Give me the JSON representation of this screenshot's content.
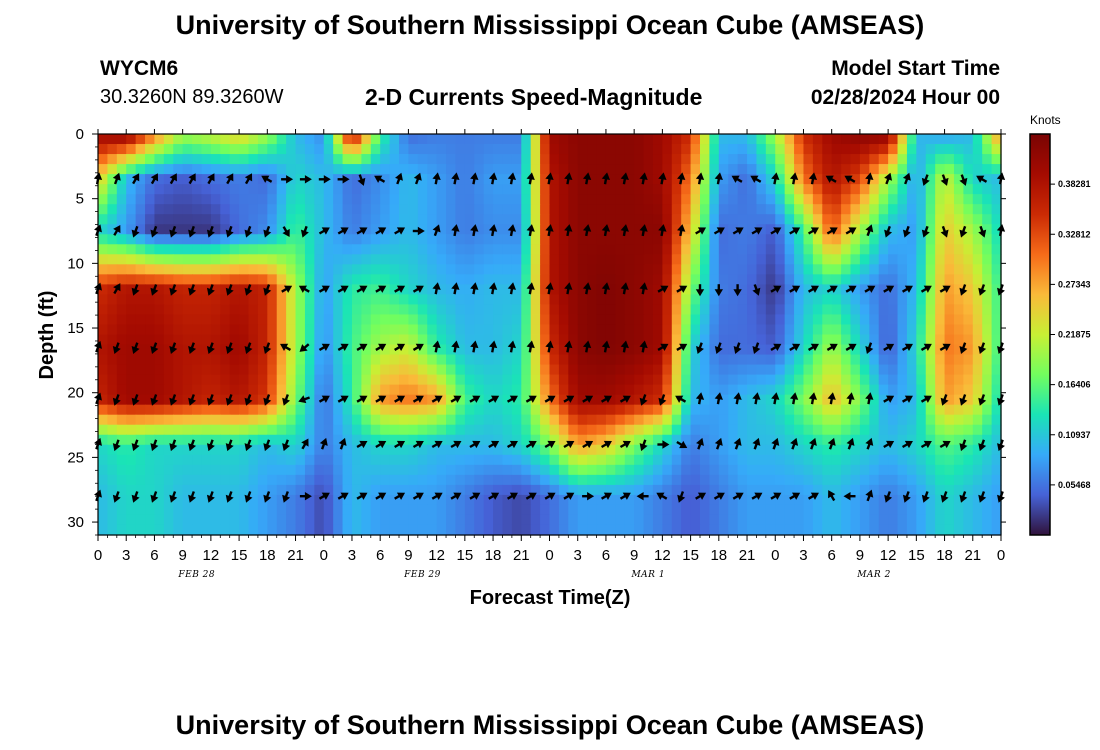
{
  "header": {
    "title": "University of Southern Mississippi Ocean Cube (AMSEAS)",
    "station_id": "WYCM6",
    "coordinates": "30.3260N  89.3260W",
    "subtitle": "2-D Currents Speed-Magnitude",
    "model_start_label": "Model Start Time",
    "model_start_value": "02/28/2024 Hour 00"
  },
  "footer": {
    "title_repeat": "University of Southern Mississippi Ocean Cube (AMSEAS)"
  },
  "chart_data": {
    "type": "heatmap",
    "title": "2-D Currents Speed-Magnitude",
    "xlabel": "Forecast Time(Z)",
    "ylabel": "Depth (ft)",
    "colorbar_label": "Knots",
    "colorbar_ticks": [
      "0.05468",
      "0.10937",
      "0.16406",
      "0.21875",
      "0.27343",
      "0.32812",
      "0.38281"
    ],
    "colorbar_range": [
      0.0,
      0.4375
    ],
    "x_ticks": [
      "0",
      "3",
      "6",
      "9",
      "12",
      "15",
      "18",
      "21",
      "0",
      "3",
      "6",
      "9",
      "12",
      "15",
      "18",
      "21",
      "0",
      "3",
      "6",
      "9",
      "12",
      "15",
      "18",
      "21",
      "0",
      "3",
      "6",
      "9",
      "12",
      "15",
      "18",
      "21",
      "0"
    ],
    "x_range_hours": [
      0,
      96
    ],
    "day_labels": [
      {
        "label": "FEB 28",
        "hour": 10.5
      },
      {
        "label": "FEB 29",
        "hour": 34.5
      },
      {
        "label": "MAR 1",
        "hour": 58.5
      },
      {
        "label": "MAR 2",
        "hour": 82.5
      }
    ],
    "y_ticks": [
      "0",
      "5",
      "10",
      "15",
      "20",
      "25",
      "30"
    ],
    "y_range_ft": [
      0,
      31
    ],
    "depths_ft": [
      0,
      3.5,
      7.5,
      12,
      16.5,
      20.5,
      24,
      28
    ],
    "times_h": [
      0,
      3,
      6,
      9,
      12,
      15,
      18,
      21,
      24,
      27,
      30,
      33,
      36,
      39,
      42,
      45,
      48,
      51,
      54,
      57,
      60,
      63,
      66,
      69,
      72,
      75,
      78,
      81,
      84,
      87,
      90,
      93,
      96
    ],
    "speed_grid_knots": [
      [
        0.4,
        0.42,
        0.3,
        0.2,
        0.22,
        0.25,
        0.2,
        0.1,
        0.07,
        0.4,
        0.15,
        0.05,
        0.06,
        0.06,
        0.06,
        0.06,
        0.4,
        0.42,
        0.42,
        0.42,
        0.4,
        0.35,
        0.1,
        0.1,
        0.2,
        0.35,
        0.4,
        0.42,
        0.42,
        0.1,
        0.08,
        0.1,
        0.3
      ],
      [
        0.25,
        0.1,
        0.05,
        0.04,
        0.05,
        0.06,
        0.05,
        0.12,
        0.1,
        0.05,
        0.07,
        0.1,
        0.08,
        0.06,
        0.08,
        0.08,
        0.38,
        0.42,
        0.42,
        0.42,
        0.4,
        0.3,
        0.08,
        0.05,
        0.12,
        0.3,
        0.38,
        0.33,
        0.2,
        0.08,
        0.22,
        0.12,
        0.1
      ],
      [
        0.12,
        0.08,
        0.02,
        0.02,
        0.02,
        0.05,
        0.07,
        0.15,
        0.1,
        0.06,
        0.08,
        0.1,
        0.08,
        0.06,
        0.07,
        0.07,
        0.38,
        0.42,
        0.42,
        0.42,
        0.42,
        0.25,
        0.05,
        0.06,
        0.04,
        0.15,
        0.32,
        0.2,
        0.1,
        0.08,
        0.25,
        0.2,
        0.12
      ],
      [
        0.35,
        0.38,
        0.38,
        0.36,
        0.36,
        0.38,
        0.36,
        0.2,
        0.08,
        0.14,
        0.15,
        0.12,
        0.1,
        0.09,
        0.1,
        0.1,
        0.38,
        0.42,
        0.43,
        0.42,
        0.4,
        0.18,
        0.06,
        0.05,
        0.02,
        0.1,
        0.12,
        0.08,
        0.05,
        0.1,
        0.28,
        0.25,
        0.14
      ],
      [
        0.38,
        0.4,
        0.4,
        0.38,
        0.38,
        0.4,
        0.36,
        0.2,
        0.07,
        0.15,
        0.2,
        0.22,
        0.14,
        0.1,
        0.1,
        0.12,
        0.35,
        0.42,
        0.43,
        0.42,
        0.4,
        0.12,
        0.05,
        0.05,
        0.04,
        0.12,
        0.2,
        0.12,
        0.04,
        0.12,
        0.3,
        0.28,
        0.14
      ],
      [
        0.36,
        0.4,
        0.4,
        0.38,
        0.36,
        0.38,
        0.34,
        0.18,
        0.05,
        0.14,
        0.28,
        0.3,
        0.28,
        0.15,
        0.12,
        0.14,
        0.3,
        0.4,
        0.4,
        0.38,
        0.35,
        0.1,
        0.08,
        0.1,
        0.12,
        0.18,
        0.26,
        0.18,
        0.08,
        0.1,
        0.28,
        0.25,
        0.12
      ],
      [
        0.12,
        0.14,
        0.12,
        0.12,
        0.12,
        0.12,
        0.1,
        0.12,
        0.06,
        0.1,
        0.12,
        0.12,
        0.1,
        0.1,
        0.1,
        0.12,
        0.18,
        0.28,
        0.25,
        0.18,
        0.12,
        0.06,
        0.08,
        0.1,
        0.1,
        0.12,
        0.14,
        0.12,
        0.1,
        0.12,
        0.16,
        0.14,
        0.1
      ],
      [
        0.1,
        0.12,
        0.12,
        0.1,
        0.1,
        0.1,
        0.08,
        0.06,
        0.03,
        0.1,
        0.08,
        0.08,
        0.08,
        0.06,
        0.04,
        0.03,
        0.05,
        0.08,
        0.08,
        0.08,
        0.06,
        0.04,
        0.06,
        0.08,
        0.08,
        0.08,
        0.1,
        0.08,
        0.06,
        0.08,
        0.12,
        0.1,
        0.08
      ]
    ],
    "arrow_depths_ft": [
      3.5,
      7.5,
      12,
      16.5,
      20.5,
      24,
      28
    ],
    "arrow_times_h": [
      0,
      2,
      4,
      6,
      8,
      10,
      12,
      14,
      16,
      18,
      20,
      22,
      24,
      26,
      28,
      30,
      32,
      34,
      36,
      38,
      40,
      42,
      44,
      46,
      48,
      50,
      52,
      54,
      56,
      58,
      60,
      62,
      64,
      66,
      68,
      70,
      72,
      74,
      76,
      78,
      80,
      82,
      84,
      86,
      88,
      90,
      92,
      94,
      96
    ],
    "arrow_dirs_deg": [
      [
        10,
        20,
        30,
        30,
        30,
        30,
        30,
        30,
        30,
        300,
        90,
        90,
        90,
        90,
        160,
        300,
        20,
        20,
        10,
        10,
        10,
        10,
        10,
        10,
        10,
        10,
        10,
        10,
        10,
        10,
        10,
        10,
        10,
        10,
        300,
        300,
        10,
        10,
        10,
        300,
        300,
        10,
        20,
        20,
        200,
        160,
        160,
        300,
        10
      ],
      [
        20,
        30,
        200,
        200,
        200,
        200,
        200,
        200,
        200,
        200,
        150,
        200,
        60,
        60,
        60,
        60,
        60,
        90,
        20,
        10,
        10,
        10,
        10,
        10,
        10,
        10,
        10,
        10,
        10,
        10,
        10,
        10,
        60,
        60,
        60,
        60,
        60,
        60,
        60,
        60,
        60,
        20,
        200,
        200,
        200,
        160,
        200,
        160,
        10
      ],
      [
        20,
        30,
        200,
        200,
        200,
        200,
        200,
        200,
        200,
        200,
        60,
        300,
        60,
        60,
        60,
        60,
        60,
        60,
        10,
        10,
        10,
        10,
        10,
        10,
        10,
        10,
        10,
        10,
        10,
        10,
        60,
        60,
        180,
        180,
        180,
        160,
        60,
        60,
        60,
        60,
        60,
        60,
        60,
        60,
        60,
        60,
        200,
        200,
        200
      ],
      [
        20,
        200,
        200,
        200,
        200,
        200,
        200,
        200,
        200,
        200,
        300,
        230,
        60,
        60,
        60,
        60,
        60,
        60,
        10,
        10,
        10,
        10,
        10,
        10,
        10,
        10,
        10,
        10,
        10,
        10,
        60,
        60,
        200,
        200,
        200,
        200,
        60,
        60,
        60,
        60,
        60,
        200,
        60,
        60,
        60,
        60,
        200,
        200,
        200
      ],
      [
        20,
        200,
        200,
        200,
        200,
        200,
        200,
        200,
        200,
        200,
        200,
        250,
        60,
        60,
        60,
        60,
        60,
        60,
        60,
        60,
        60,
        60,
        60,
        60,
        60,
        60,
        60,
        60,
        60,
        200,
        200,
        300,
        10,
        10,
        10,
        10,
        10,
        10,
        10,
        10,
        10,
        10,
        60,
        60,
        60,
        200,
        200,
        200,
        200
      ],
      [
        20,
        200,
        200,
        200,
        200,
        200,
        200,
        200,
        200,
        200,
        200,
        30,
        20,
        20,
        60,
        60,
        60,
        60,
        60,
        60,
        60,
        60,
        60,
        60,
        60,
        60,
        60,
        60,
        60,
        200,
        90,
        120,
        20,
        20,
        20,
        20,
        20,
        20,
        20,
        20,
        20,
        20,
        60,
        60,
        60,
        60,
        200,
        200,
        200
      ],
      [
        20,
        200,
        200,
        200,
        200,
        200,
        200,
        200,
        200,
        200,
        200,
        90,
        60,
        60,
        60,
        60,
        60,
        60,
        60,
        60,
        60,
        60,
        60,
        60,
        60,
        60,
        90,
        60,
        60,
        270,
        300,
        200,
        60,
        60,
        60,
        60,
        60,
        60,
        60,
        330,
        270,
        20,
        200,
        200,
        200,
        200,
        200,
        200,
        200
      ]
    ]
  }
}
